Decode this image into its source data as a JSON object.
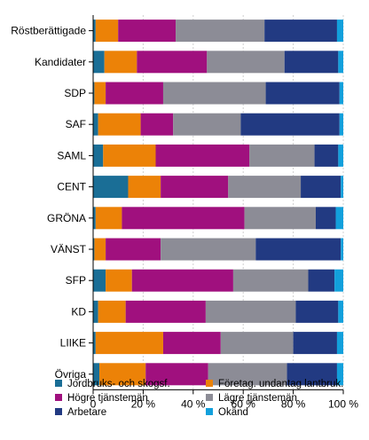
{
  "chart_data": {
    "type": "bar",
    "orientation": "horizontal",
    "stacked": "percent",
    "categories": [
      "Röstberättigade",
      "Kandidater",
      "SDP",
      "SAF",
      "SAML",
      "CENT",
      "GRÖNA",
      "VÄNST",
      "SFP",
      "KD",
      "LIIKE",
      "Övriga"
    ],
    "series": [
      {
        "name": "Jordbruks- och skogsf.",
        "color": "#1a6e96",
        "values": [
          1,
          4.5,
          0.5,
          2,
          4,
          14,
          1,
          0.5,
          5,
          2,
          1,
          2.5
        ]
      },
      {
        "name": "Företag. undantag lantbruk.",
        "color": "#ec8207",
        "values": [
          9,
          13,
          4.5,
          17,
          21,
          13,
          10.5,
          4.5,
          10.5,
          11,
          27,
          18.5
        ]
      },
      {
        "name": "Högre tjänstemän",
        "color": "#a0107e",
        "values": [
          23,
          28,
          23,
          13,
          37.5,
          27,
          49,
          22,
          40.5,
          32,
          23,
          25
        ]
      },
      {
        "name": "Lägre tjänstemän",
        "color": "#8c8c96",
        "values": [
          35.5,
          31,
          41,
          27,
          26,
          29,
          28.5,
          38,
          30,
          36,
          29,
          31.5
        ]
      },
      {
        "name": "Arbetare",
        "color": "#223a82",
        "values": [
          29,
          21.5,
          29.5,
          39.5,
          9.5,
          16,
          8,
          34,
          10.5,
          17,
          17.5,
          20
        ]
      },
      {
        "name": "Okänd",
        "color": "#12a0dc",
        "values": [
          2.5,
          2,
          1.5,
          1.5,
          2,
          1,
          3,
          1,
          3.5,
          2,
          2.5,
          2.5
        ]
      }
    ],
    "x_ticks": [
      "0",
      "20 %",
      "40 %",
      "60 %",
      "80 %",
      "100 %"
    ],
    "xlim": [
      0,
      100
    ],
    "grid": true,
    "legend_position": "bottom"
  }
}
